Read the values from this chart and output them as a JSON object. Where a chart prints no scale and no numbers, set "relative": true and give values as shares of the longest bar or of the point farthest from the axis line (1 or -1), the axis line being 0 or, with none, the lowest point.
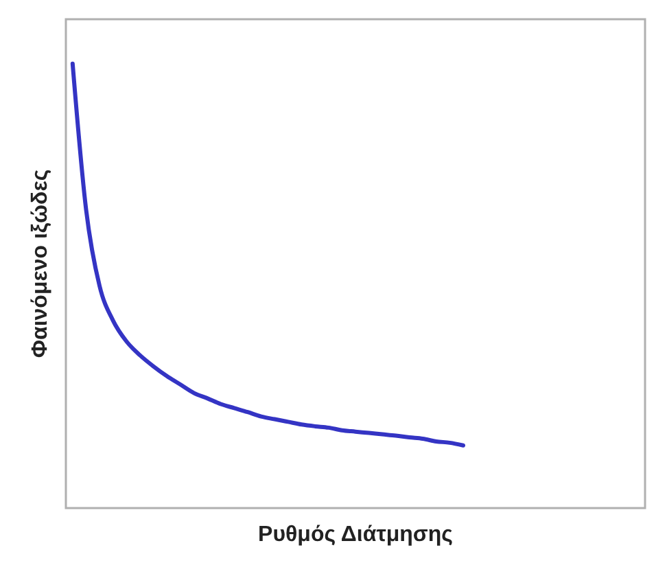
{
  "chart_data": {
    "type": "line",
    "xlabel": "Ρυθμός Διάτμησης",
    "ylabel": "Φαινόμενο ιξώδες",
    "relative": true,
    "categories": [
      null,
      null,
      null,
      null,
      null,
      null,
      null,
      null,
      null,
      null,
      null,
      null,
      null,
      null,
      null,
      null,
      null,
      null,
      null,
      null,
      null,
      null,
      null,
      null,
      null,
      null,
      null,
      null,
      null,
      null,
      null,
      null,
      null,
      null,
      null,
      null,
      null,
      null,
      null,
      null,
      null,
      null,
      null
    ],
    "series": [
      {
        "color": "#3434c4",
        "values": [
          1.0,
          0.672,
          0.5,
          0.422,
          0.375,
          0.344,
          0.319,
          0.297,
          0.278,
          0.259,
          0.247,
          0.234,
          0.225,
          0.216,
          0.206,
          0.2,
          0.194,
          0.188,
          0.184,
          0.181,
          0.175,
          0.172,
          0.169,
          0.166,
          0.163,
          0.159,
          0.156,
          0.15,
          0.147,
          0.141,
          null,
          null,
          null,
          null,
          null,
          null,
          null,
          null,
          null,
          null,
          null,
          null,
          null
        ]
      }
    ]
  }
}
